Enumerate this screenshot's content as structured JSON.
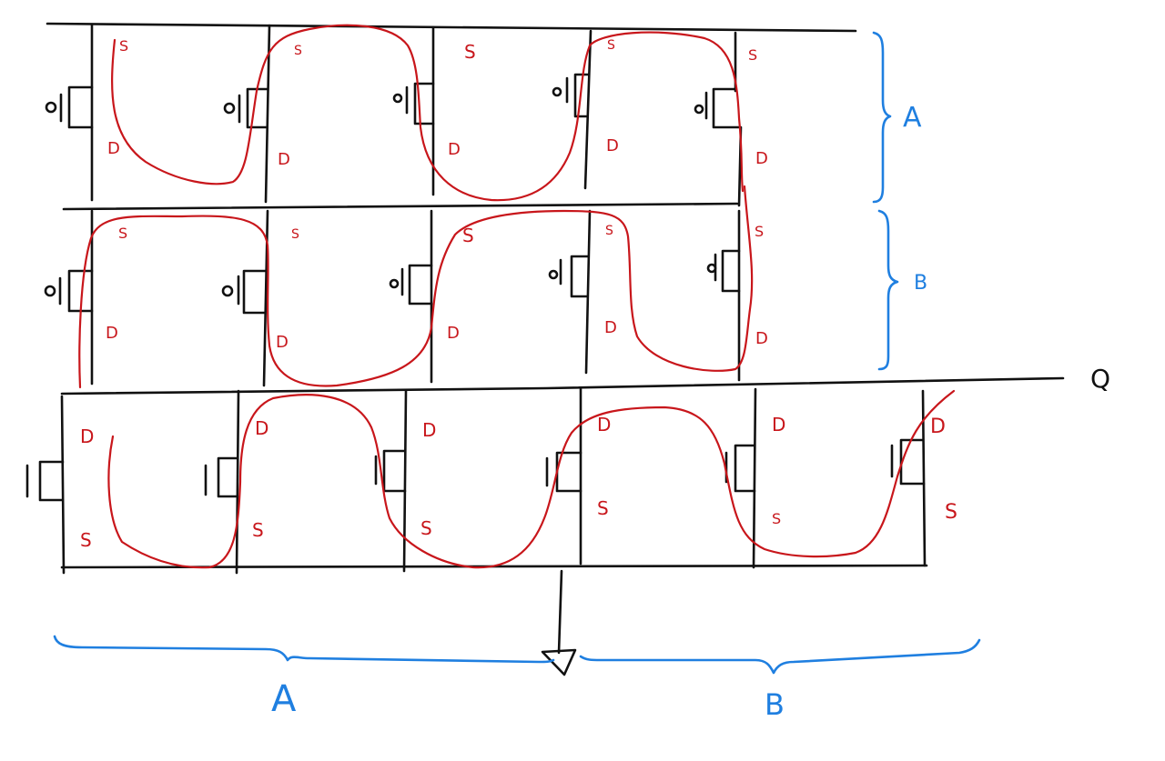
{
  "diagram": {
    "colors": {
      "wire": "#111111",
      "conduction_path": "#c8161b",
      "annotation": "#1f7fe0"
    },
    "output_label": "Q",
    "row_braces": [
      {
        "label": "A"
      },
      {
        "label": "B"
      }
    ],
    "bottom_braces": [
      {
        "label": "A"
      },
      {
        "label": "B"
      }
    ],
    "pmos_rows": [
      {
        "transistors": [
          {
            "source": "S",
            "drain": "D"
          },
          {
            "source": "S",
            "drain": "D"
          },
          {
            "source": "S",
            "drain": "D"
          },
          {
            "source": "S",
            "drain": "D"
          },
          {
            "source": "S",
            "drain": "D"
          }
        ]
      },
      {
        "transistors": [
          {
            "source": "S",
            "drain": "D"
          },
          {
            "source": "S",
            "drain": "D"
          },
          {
            "source": "S",
            "drain": "D"
          },
          {
            "source": "S",
            "drain": "D"
          },
          {
            "source": "S",
            "drain": "D"
          }
        ]
      }
    ],
    "nmos_row": {
      "transistors": [
        {
          "drain": "D",
          "source": "S"
        },
        {
          "drain": "D",
          "source": "S"
        },
        {
          "drain": "D",
          "source": "S"
        },
        {
          "drain": "D",
          "source": "S"
        },
        {
          "drain": "D",
          "source": "S"
        },
        {
          "drain": "D",
          "source": "S"
        }
      ]
    }
  }
}
